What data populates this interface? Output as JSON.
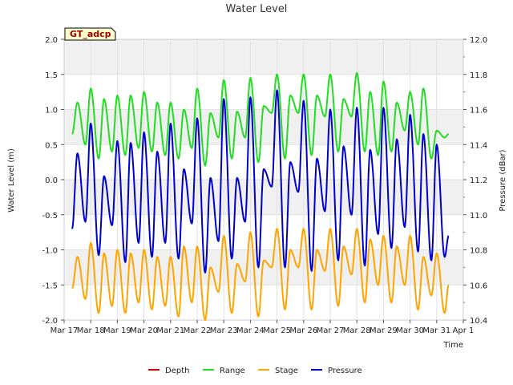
{
  "chart_data": {
    "type": "line",
    "title": "Water Level",
    "site_label": "GT_adcp",
    "xlabel": "Time",
    "ylabel_left": "Water Level (m)",
    "ylabel_right": "Pressure (dBar)",
    "ylim_left": [
      -2.0,
      2.0
    ],
    "ylim_right": [
      10.4,
      12.0
    ],
    "xlim_days": [
      17,
      32
    ],
    "x_ticks": [
      {
        "day": 17,
        "label": "Mar 17"
      },
      {
        "day": 18,
        "label": "Mar 18"
      },
      {
        "day": 19,
        "label": "Mar 19"
      },
      {
        "day": 20,
        "label": "Mar 20"
      },
      {
        "day": 21,
        "label": "Mar 21"
      },
      {
        "day": 22,
        "label": "Mar 22"
      },
      {
        "day": 23,
        "label": "Mar 23"
      },
      {
        "day": 24,
        "label": "Mar 24"
      },
      {
        "day": 25,
        "label": "Mar 25"
      },
      {
        "day": 26,
        "label": "Mar 26"
      },
      {
        "day": 27,
        "label": "Mar 27"
      },
      {
        "day": 28,
        "label": "Mar 28"
      },
      {
        "day": 29,
        "label": "Mar 29"
      },
      {
        "day": 30,
        "label": "Mar 30"
      },
      {
        "day": 31,
        "label": "Mar 31"
      },
      {
        "day": 32,
        "label": "Apr 1"
      }
    ],
    "y_ticks_left": [
      {
        "value": 2.0,
        "label": "2.0"
      },
      {
        "value": 1.5,
        "label": "1.5"
      },
      {
        "value": 1.0,
        "label": "1.0"
      },
      {
        "value": 0.5,
        "label": "0.5"
      },
      {
        "value": 0.0,
        "label": "0.0"
      },
      {
        "value": -0.5,
        "label": "-0.5"
      },
      {
        "value": -1.0,
        "label": "-1.0"
      },
      {
        "value": -1.5,
        "label": "-1.5"
      },
      {
        "value": -2.0,
        "label": "-2.0"
      }
    ],
    "y_ticks_right": [
      {
        "value": 12.0,
        "label": "12.0"
      },
      {
        "value": 11.8,
        "label": "11.8"
      },
      {
        "value": 11.6,
        "label": "11.6"
      },
      {
        "value": 11.4,
        "label": "11.4"
      },
      {
        "value": 11.2,
        "label": "11.2"
      },
      {
        "value": 11.0,
        "label": "11.0"
      },
      {
        "value": 10.8,
        "label": "10.8"
      },
      {
        "value": 10.6,
        "label": "10.6"
      },
      {
        "value": 10.4,
        "label": "10.4"
      }
    ],
    "series": [
      {
        "name": "Depth",
        "color": "#dd0000",
        "axis": "left",
        "x": [],
        "y": []
      },
      {
        "name": "Range",
        "color": "#22dd22",
        "axis": "left",
        "x": [
          17.3,
          17.5,
          17.8,
          18.0,
          18.3,
          18.5,
          18.8,
          19.0,
          19.3,
          19.5,
          19.8,
          20.0,
          20.3,
          20.5,
          20.8,
          21.0,
          21.3,
          21.5,
          21.8,
          22.0,
          22.3,
          22.5,
          22.8,
          23.0,
          23.3,
          23.5,
          23.8,
          24.0,
          24.3,
          24.5,
          24.8,
          25.0,
          25.3,
          25.5,
          25.8,
          26.0,
          26.3,
          26.5,
          26.8,
          27.0,
          27.3,
          27.5,
          27.8,
          28.0,
          28.3,
          28.5,
          28.8,
          29.0,
          29.3,
          29.5,
          29.8,
          30.0,
          30.3,
          30.5,
          30.8,
          31.0,
          31.3,
          31.45
        ],
        "y": [
          0.65,
          1.1,
          0.5,
          1.3,
          0.3,
          1.15,
          0.4,
          1.2,
          0.35,
          1.2,
          0.45,
          1.25,
          0.4,
          1.1,
          0.35,
          1.1,
          0.3,
          1.0,
          0.45,
          1.3,
          0.2,
          0.95,
          0.6,
          1.42,
          0.3,
          0.97,
          0.6,
          1.45,
          0.25,
          1.05,
          0.95,
          1.5,
          0.3,
          1.2,
          0.95,
          1.5,
          0.35,
          1.2,
          0.9,
          1.5,
          0.4,
          1.15,
          0.9,
          1.52,
          0.4,
          1.25,
          0.35,
          1.4,
          0.4,
          1.1,
          0.7,
          1.25,
          0.5,
          1.3,
          0.3,
          0.7,
          0.6,
          0.65
        ]
      },
      {
        "name": "Stage",
        "color": "#ffa500",
        "axis": "left",
        "x": [
          17.3,
          17.5,
          17.8,
          18.0,
          18.3,
          18.5,
          18.8,
          19.0,
          19.3,
          19.5,
          19.8,
          20.0,
          20.3,
          20.5,
          20.8,
          21.0,
          21.3,
          21.5,
          21.8,
          22.0,
          22.3,
          22.5,
          22.8,
          23.0,
          23.3,
          23.5,
          23.8,
          24.0,
          24.3,
          24.5,
          24.8,
          25.0,
          25.3,
          25.5,
          25.8,
          26.0,
          26.3,
          26.5,
          26.8,
          27.0,
          27.3,
          27.5,
          27.8,
          28.0,
          28.3,
          28.5,
          28.8,
          29.0,
          29.3,
          29.5,
          29.8,
          30.0,
          30.3,
          30.5,
          30.8,
          31.0,
          31.3,
          31.45
        ],
        "y": [
          -1.55,
          -1.1,
          -1.7,
          -0.9,
          -1.9,
          -1.05,
          -1.8,
          -1.0,
          -1.9,
          -1.05,
          -1.75,
          -1.0,
          -1.85,
          -1.1,
          -1.8,
          -1.1,
          -1.95,
          -0.95,
          -1.75,
          -0.95,
          -2.0,
          -1.25,
          -1.6,
          -0.8,
          -1.9,
          -1.2,
          -1.45,
          -0.75,
          -1.95,
          -1.15,
          -1.25,
          -0.7,
          -1.85,
          -1.0,
          -1.25,
          -0.7,
          -1.85,
          -1.0,
          -1.3,
          -0.7,
          -1.8,
          -0.95,
          -1.35,
          -0.7,
          -1.75,
          -0.85,
          -1.5,
          -0.8,
          -1.75,
          -0.95,
          -1.5,
          -0.8,
          -1.85,
          -1.1,
          -1.65,
          -1.05,
          -1.9,
          -1.5
        ]
      },
      {
        "name": "Pressure",
        "color": "#0000cc",
        "axis": "right",
        "x": [
          17.3,
          17.5,
          17.8,
          18.0,
          18.3,
          18.5,
          18.8,
          19.0,
          19.3,
          19.5,
          19.8,
          20.0,
          20.3,
          20.5,
          20.8,
          21.0,
          21.3,
          21.5,
          21.8,
          22.0,
          22.3,
          22.5,
          22.8,
          23.0,
          23.3,
          23.5,
          23.8,
          24.0,
          24.3,
          24.5,
          24.8,
          25.0,
          25.3,
          25.5,
          25.8,
          26.0,
          26.3,
          26.5,
          26.8,
          27.0,
          27.3,
          27.5,
          27.8,
          28.0,
          28.3,
          28.5,
          28.8,
          29.0,
          29.3,
          29.5,
          29.8,
          30.0,
          30.3,
          30.5,
          30.8,
          31.0,
          31.3,
          31.45
        ],
        "y": [
          10.92,
          11.35,
          10.96,
          11.52,
          10.77,
          11.22,
          10.94,
          11.42,
          10.73,
          11.41,
          10.84,
          11.47,
          10.76,
          11.36,
          10.84,
          11.52,
          10.75,
          11.26,
          10.95,
          11.55,
          10.67,
          11.21,
          10.85,
          11.66,
          10.75,
          11.21,
          10.96,
          11.67,
          10.7,
          11.26,
          11.16,
          11.71,
          10.7,
          11.3,
          11.13,
          11.65,
          10.68,
          11.32,
          11.02,
          11.6,
          10.74,
          11.39,
          11.0,
          11.61,
          10.71,
          11.37,
          10.89,
          11.61,
          10.81,
          11.43,
          10.93,
          11.57,
          10.79,
          11.46,
          10.74,
          11.4,
          10.76,
          10.88
        ]
      }
    ],
    "legend_position": "bottom-center"
  }
}
